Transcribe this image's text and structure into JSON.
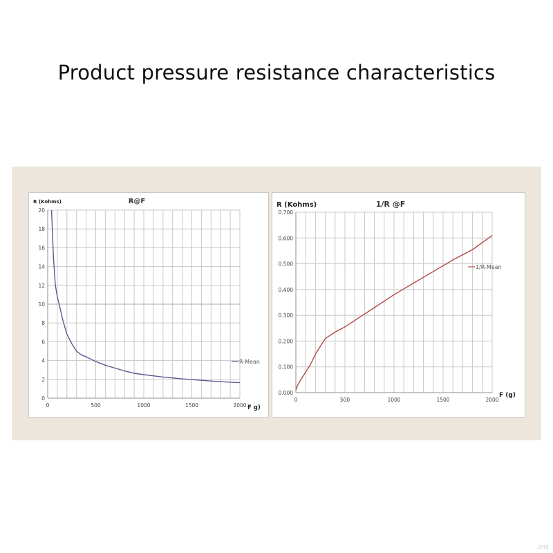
{
  "page": {
    "title": "Product pressure resistance characteristics",
    "watermark": "ZH8"
  },
  "colors": {
    "background_band": "#ede6dc",
    "series_left": "#5a5a8f",
    "series_right": "#b04a45"
  },
  "chart_data": [
    {
      "type": "line",
      "title": "R@F",
      "ylabel": "R (Kohms)",
      "xlabel": "F g)",
      "xlim": [
        0,
        2000
      ],
      "ylim": [
        0,
        20
      ],
      "x_ticks": [
        0,
        500,
        1000,
        1500,
        2000
      ],
      "y_ticks": [
        0,
        2,
        4,
        6,
        8,
        10,
        12,
        14,
        16,
        18,
        20
      ],
      "grid": true,
      "legend": "right",
      "series": [
        {
          "name": "R-Mean",
          "x": [
            40,
            60,
            80,
            100,
            130,
            160,
            200,
            250,
            300,
            350,
            400,
            500,
            600,
            700,
            800,
            900,
            1000,
            1200,
            1400,
            1600,
            1800,
            2000
          ],
          "y": [
            20,
            15,
            12,
            10.8,
            9.5,
            8.2,
            6.8,
            5.8,
            5.0,
            4.6,
            4.4,
            3.9,
            3.5,
            3.2,
            2.9,
            2.65,
            2.5,
            2.25,
            2.05,
            1.9,
            1.75,
            1.65
          ]
        }
      ]
    },
    {
      "type": "line",
      "title": "1/R @F",
      "ylabel": "R (Kohms)",
      "xlabel": "F (g)",
      "xlim": [
        0,
        2000
      ],
      "ylim": [
        0,
        0.7
      ],
      "x_ticks": [
        0,
        500,
        1000,
        1500,
        2000
      ],
      "y_ticks": [
        "0.000",
        "0.100",
        "0.200",
        "0.300",
        "0.400",
        "0.500",
        "0.600",
        "0.700"
      ],
      "grid": true,
      "legend": "right",
      "series": [
        {
          "name": "1/R-Mean",
          "x": [
            0,
            20,
            50,
            100,
            150,
            200,
            250,
            300,
            400,
            500,
            600,
            800,
            1000,
            1200,
            1400,
            1600,
            1800,
            2000
          ],
          "y": [
            0.01,
            0.03,
            0.05,
            0.08,
            0.11,
            0.15,
            0.18,
            0.21,
            0.235,
            0.255,
            0.28,
            0.33,
            0.38,
            0.425,
            0.47,
            0.515,
            0.555,
            0.61
          ]
        }
      ]
    }
  ]
}
